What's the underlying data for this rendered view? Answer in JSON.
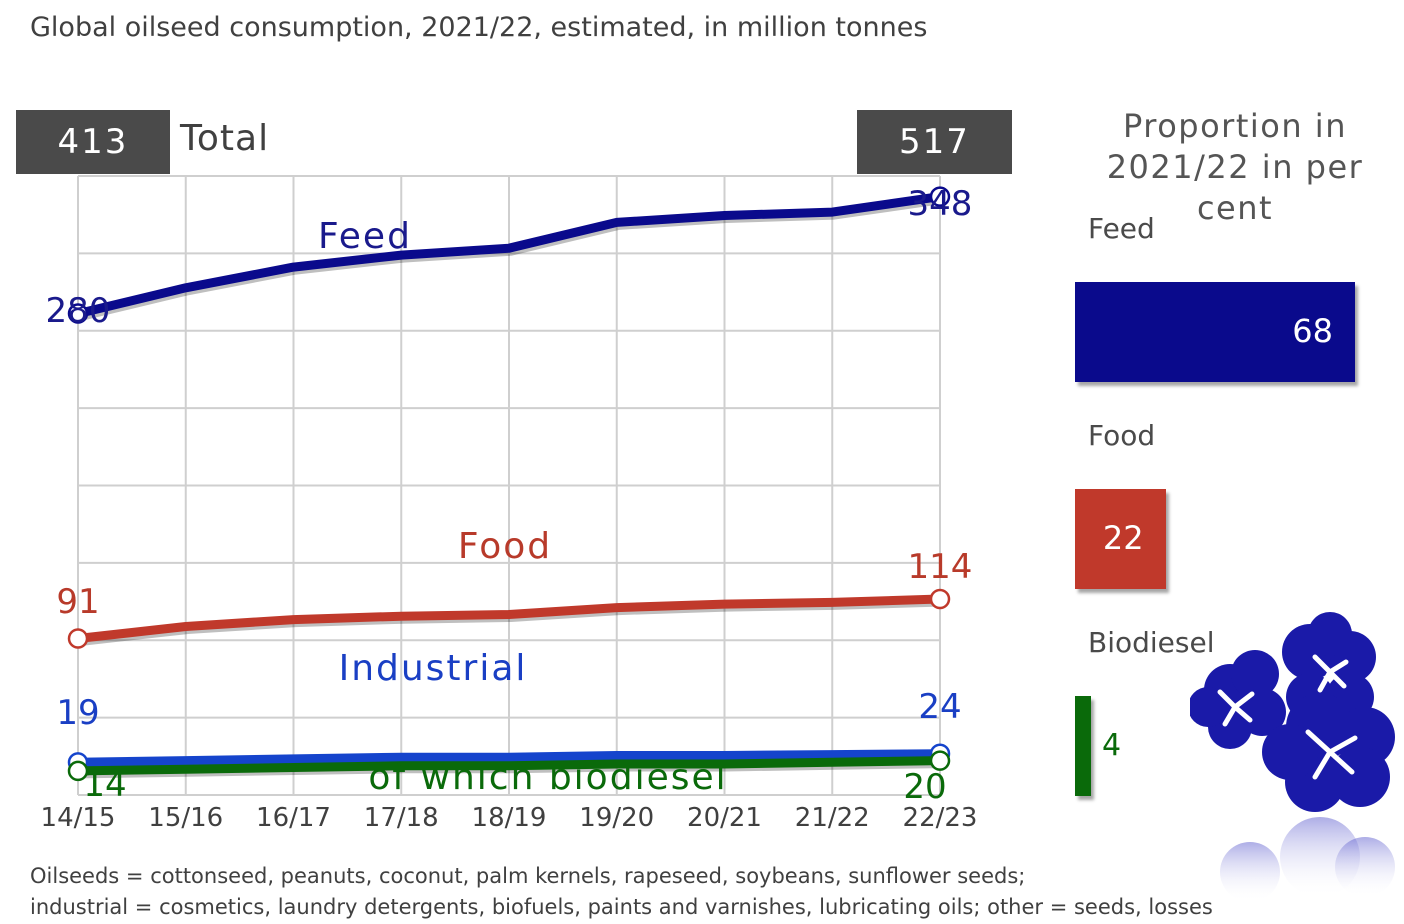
{
  "title": "Global oilseed consumption, 2021/22, estimated, in million tonnes",
  "totals": {
    "label": "Total",
    "start": "413",
    "end": "517"
  },
  "chart_data": {
    "type": "line",
    "categories": [
      "14/15",
      "15/16",
      "16/17",
      "17/18",
      "18/19",
      "19/20",
      "20/21",
      "21/22",
      "22/23"
    ],
    "ylim": [
      0,
      360
    ],
    "grid": true,
    "series": [
      {
        "name": "Feed",
        "color": "#0a0a8c",
        "label_color": "#1a1a8c",
        "values": [
          280,
          295,
          307,
          314,
          318,
          333,
          337,
          339,
          348
        ],
        "start_label": "280",
        "end_label": "348"
      },
      {
        "name": "Food",
        "color": "#c0392b",
        "label_color": "#b83a2a",
        "values": [
          91,
          98,
          102,
          104,
          105,
          109,
          111,
          112,
          114
        ],
        "start_label": "91",
        "end_label": "114"
      },
      {
        "name": "Industrial",
        "color": "#1544cc",
        "label_color": "#1a3fc4",
        "values": [
          19,
          20,
          21,
          22,
          22,
          23,
          23,
          23.5,
          24
        ],
        "start_label": "19",
        "end_label": "24"
      },
      {
        "name": "of which biodiesel",
        "color": "#0a6a0a",
        "label_color": "#0a6a0a",
        "values": [
          14,
          15,
          16,
          17,
          17,
          18,
          18,
          19,
          20
        ],
        "start_label": "14",
        "end_label": "20"
      }
    ]
  },
  "proportion": {
    "title": "Proportion in 2021/22 in per cent",
    "items": [
      {
        "label": "Feed",
        "value": 68,
        "value_text": "68",
        "color": "#0a0a8c"
      },
      {
        "label": "Food",
        "value": 22,
        "value_text": "22",
        "color": "#c0392b"
      },
      {
        "label": "Biodiesel",
        "value": 4,
        "value_text": "4",
        "color": "#0a6a0a"
      }
    ]
  },
  "decoration": {
    "icon": "flax-flower-icon",
    "color": "#1a1aa8"
  },
  "footnote": {
    "line1": "Oilseeds = cottonseed, peanuts, coconut, palm kernels, rapeseed, soybeans, sunflower seeds;",
    "line2": "industrial = cosmetics, laundry detergents, biofuels, paints and varnishes, lubricating oils; other = seeds, losses"
  }
}
